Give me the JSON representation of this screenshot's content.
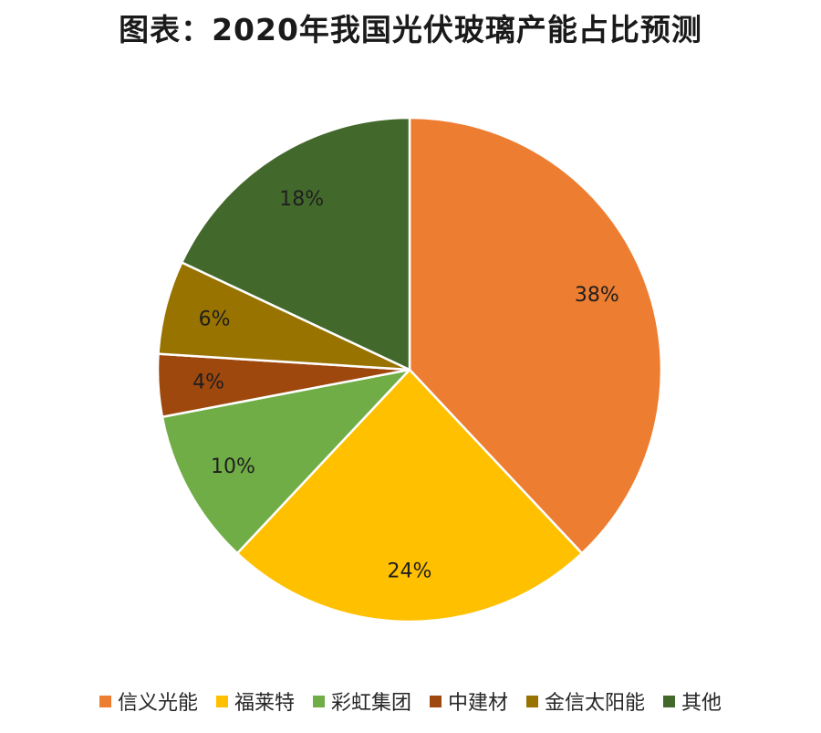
{
  "chart_data": {
    "type": "pie",
    "title": "图表：2020年我国光伏玻璃产能占比预测",
    "slices": [
      {
        "label": "信义光能",
        "value": 38,
        "display": "38%",
        "color": "#ED7D31"
      },
      {
        "label": "福莱特",
        "value": 24,
        "display": "24%",
        "color": "#FFC000"
      },
      {
        "label": "彩虹集团",
        "value": 10,
        "display": "10%",
        "color": "#70AD47"
      },
      {
        "label": "中建材",
        "value": 4,
        "display": "4%",
        "color": "#9E480E"
      },
      {
        "label": "金信太阳能",
        "value": 6,
        "display": "6%",
        "color": "#997300"
      },
      {
        "label": "其他",
        "value": 18,
        "display": "18%",
        "color": "#43682B"
      }
    ],
    "legend_position": "bottom",
    "start_angle": "12 o'clock",
    "direction": "clockwise"
  }
}
